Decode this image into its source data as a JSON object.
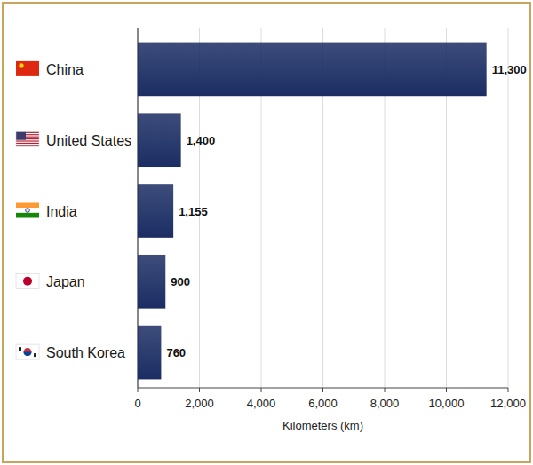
{
  "chart_data": {
    "type": "bar",
    "orientation": "horizontal",
    "categories": [
      "China",
      "United States",
      "India",
      "Japan",
      "South Korea"
    ],
    "values": [
      11300,
      1400,
      1155,
      900,
      760
    ],
    "value_labels": [
      "11,300",
      "1,400",
      "1,155",
      "900",
      "760"
    ],
    "data_labels": true,
    "color": "#1b2d63",
    "xlabel": "Kilometers (km)",
    "xlim": [
      0,
      12000
    ],
    "xticks": [
      0,
      {
        "value": 2000,
        "label": "2,000"
      },
      {
        "value": 4000,
        "label": "4,000"
      },
      {
        "value": 6000,
        "label": "6,000"
      },
      {
        "value": 8000,
        "label": "8,000"
      },
      {
        "value": 10000,
        "label": "10,000"
      },
      {
        "value": 12000,
        "label": "12,000"
      }
    ],
    "grid": true
  }
}
